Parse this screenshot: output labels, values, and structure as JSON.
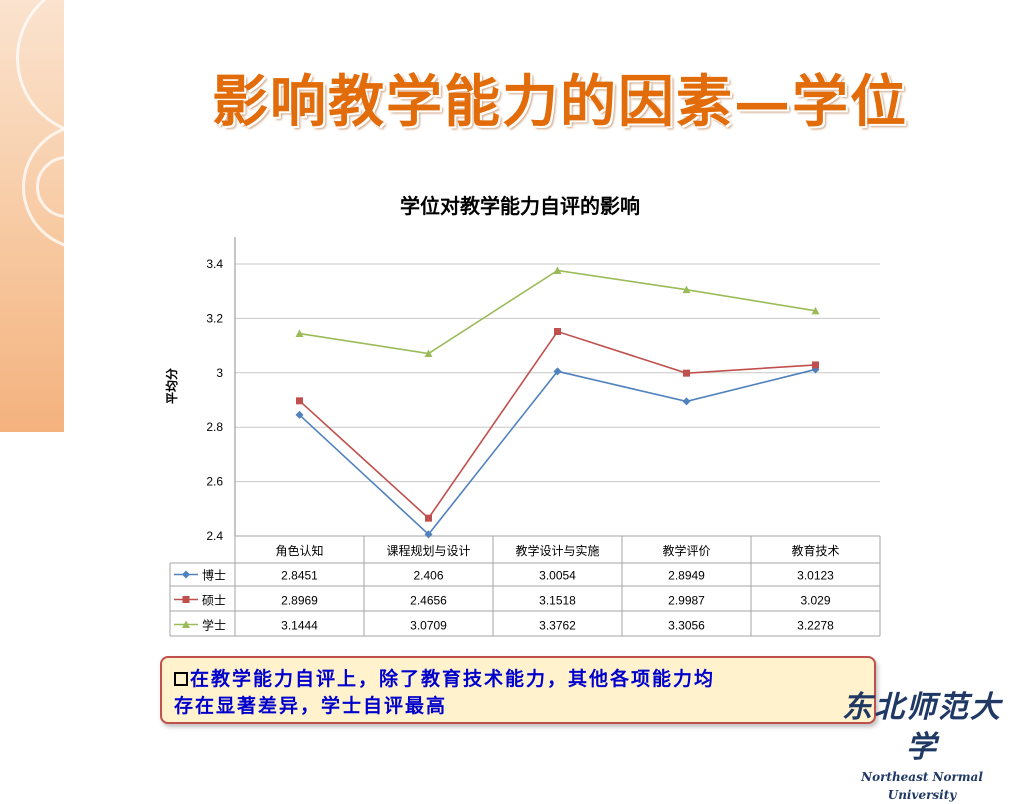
{
  "slide": {
    "title": "影响教学能力的因素—学位"
  },
  "chart_data": {
    "type": "line",
    "title": "学位对教学能力自评的影响",
    "ylabel": "平均分",
    "xlabel": "",
    "ylim": [
      2.4,
      3.5
    ],
    "yticks": [
      2.4,
      2.6,
      2.8,
      3,
      3.2,
      3.4
    ],
    "ytick_labels": [
      "2.4",
      "2.6",
      "2.8",
      "3",
      "3.2",
      "3.4"
    ],
    "grid": true,
    "legend": "data-table",
    "categories": [
      "角色认知",
      "课程规划与设计",
      "教学设计与实施",
      "教学评价",
      "教育技术"
    ],
    "series": [
      {
        "name": "博士",
        "values": [
          2.8451,
          2.406,
          3.0054,
          2.8949,
          3.0123
        ],
        "labels": [
          "2.8451",
          "2.406",
          "3.0054",
          "2.8949",
          "3.0123"
        ],
        "color": "#4f81bd",
        "marker": "diamond"
      },
      {
        "name": "硕士",
        "values": [
          2.8969,
          2.4656,
          3.1518,
          2.9987,
          3.029
        ],
        "labels": [
          "2.8969",
          "2.4656",
          "3.1518",
          "2.9987",
          "3.029"
        ],
        "color": "#c0504d",
        "marker": "square"
      },
      {
        "name": "学士",
        "values": [
          3.1444,
          3.0709,
          3.3762,
          3.3056,
          3.2278
        ],
        "labels": [
          "3.1444",
          "3.0709",
          "3.3762",
          "3.3056",
          "3.2278"
        ],
        "color": "#9bbb59",
        "marker": "triangle"
      }
    ]
  },
  "note": {
    "text_line1": "在教学能力自评上，除了教育技术能力，其他各项能力均",
    "text_line2": "存在显著差异，学士自评最高"
  },
  "logo": {
    "cn": "东北师范大学",
    "en": "Northeast Normal University"
  }
}
